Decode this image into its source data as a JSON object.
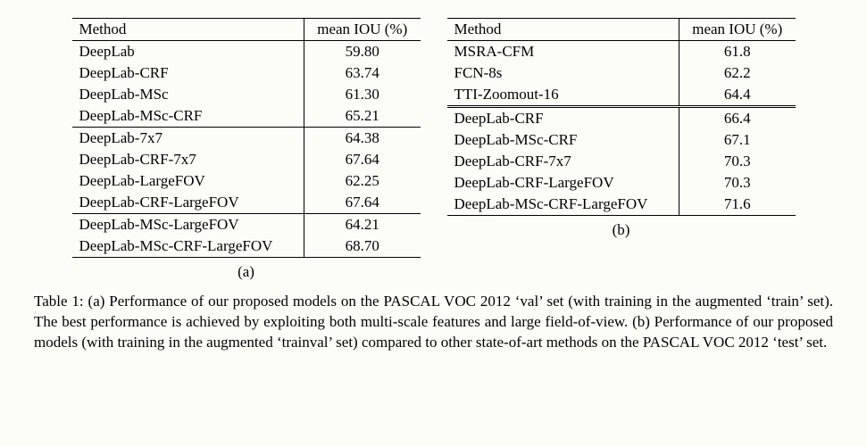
{
  "tables": {
    "a": {
      "headers": {
        "method": "Method",
        "iou": "mean IOU (%)"
      },
      "groups": [
        {
          "rows": [
            {
              "method": "DeepLab",
              "iou": "59.80"
            },
            {
              "method": "DeepLab-CRF",
              "iou": "63.74"
            },
            {
              "method": "DeepLab-MSc",
              "iou": "61.30"
            },
            {
              "method": "DeepLab-MSc-CRF",
              "iou": "65.21"
            }
          ]
        },
        {
          "rows": [
            {
              "method": "DeepLab-7x7",
              "iou": "64.38"
            },
            {
              "method": "DeepLab-CRF-7x7",
              "iou": "67.64"
            },
            {
              "method": "DeepLab-LargeFOV",
              "iou": "62.25"
            },
            {
              "method": "DeepLab-CRF-LargeFOV",
              "iou": "67.64"
            }
          ]
        },
        {
          "rows": [
            {
              "method": "DeepLab-MSc-LargeFOV",
              "iou": "64.21"
            },
            {
              "method": "DeepLab-MSc-CRF-LargeFOV",
              "iou": "68.70"
            }
          ]
        }
      ],
      "sublabel": "(a)",
      "col_widths": {
        "method": "260px",
        "iou": "130px"
      }
    },
    "b": {
      "headers": {
        "method": "Method",
        "iou": "mean IOU (%)"
      },
      "groups": [
        {
          "rows": [
            {
              "method": "MSRA-CFM",
              "iou": "61.8"
            },
            {
              "method": "FCN-8s",
              "iou": "62.2"
            },
            {
              "method": "TTI-Zoomout-16",
              "iou": "64.4"
            }
          ]
        },
        {
          "rows": [
            {
              "method": "DeepLab-CRF",
              "iou": "66.4"
            },
            {
              "method": "DeepLab-MSc-CRF",
              "iou": "67.1"
            },
            {
              "method": "DeepLab-CRF-7x7",
              "iou": "70.3"
            },
            {
              "method": "DeepLab-CRF-LargeFOV",
              "iou": "70.3"
            },
            {
              "method": "DeepLab-MSc-CRF-LargeFOV",
              "iou": "71.6"
            }
          ]
        }
      ],
      "sublabel": "(b)",
      "col_widths": {
        "method": "260px",
        "iou": "130px"
      }
    }
  },
  "caption": "Table 1: (a) Performance of our proposed models on the PASCAL VOC 2012 ‘val’ set (with training in the augmented ‘train’ set). The best performance is achieved by exploiting both multi-scale features and large field-of-view. (b) Performance of our proposed models (with training in the augmented ‘trainval’ set) compared to other state-of-art methods on the PASCAL VOC 2012 ‘test’ set.",
  "colors": {
    "background": "#fdfdf8",
    "text": "#000000",
    "border": "#000000"
  }
}
